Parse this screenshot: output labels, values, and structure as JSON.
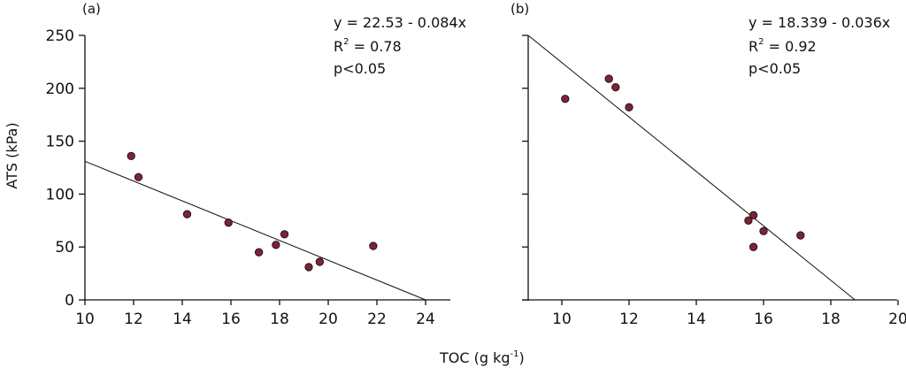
{
  "figure": {
    "xlabel_main": "TOC (g kg",
    "xlabel_sup": "-1",
    "xlabel_close": ")",
    "ylabel": "ATS (kPa)",
    "marker_color": "#7a2535",
    "line_color": "#111111"
  },
  "chart_data": [
    {
      "type": "scatter",
      "panel": "(a)",
      "title": "",
      "xlabel": "TOC (g kg-1)",
      "ylabel": "ATS (kPa)",
      "xlim": [
        10,
        25
      ],
      "ylim": [
        0,
        250
      ],
      "xticks": [
        10,
        12,
        14,
        16,
        18,
        20,
        22,
        24
      ],
      "yticks": [
        0,
        50,
        100,
        150,
        200,
        250
      ],
      "show_ytick_labels": true,
      "grid": false,
      "points": [
        {
          "x": 11.9,
          "y": 136
        },
        {
          "x": 12.2,
          "y": 116
        },
        {
          "x": 14.2,
          "y": 81
        },
        {
          "x": 15.9,
          "y": 73
        },
        {
          "x": 17.15,
          "y": 45
        },
        {
          "x": 17.85,
          "y": 52
        },
        {
          "x": 18.2,
          "y": 62
        },
        {
          "x": 19.2,
          "y": 31
        },
        {
          "x": 19.65,
          "y": 36
        },
        {
          "x": 21.85,
          "y": 51
        }
      ],
      "fit_line": {
        "x0": 10,
        "y0": 131,
        "x1": 24,
        "y1": 0
      },
      "annotation": {
        "equation": "y = 22.53 - 0.084x",
        "r2_prefix": "R",
        "r2_sup": "2",
        "r2_value": " = 0.78",
        "p": "p<0.05"
      }
    },
    {
      "type": "scatter",
      "panel": "(b)",
      "title": "",
      "xlabel": "TOC (g kg-1)",
      "ylabel": "",
      "xlim": [
        9,
        20
      ],
      "ylim": [
        0,
        250
      ],
      "xticks": [
        10,
        12,
        14,
        16,
        18,
        20
      ],
      "yticks": [
        0,
        50,
        100,
        150,
        200,
        250
      ],
      "show_ytick_labels": false,
      "grid": false,
      "points": [
        {
          "x": 10.1,
          "y": 190
        },
        {
          "x": 11.4,
          "y": 209
        },
        {
          "x": 11.6,
          "y": 201
        },
        {
          "x": 12.0,
          "y": 182
        },
        {
          "x": 15.55,
          "y": 75
        },
        {
          "x": 15.7,
          "y": 80
        },
        {
          "x": 15.7,
          "y": 50
        },
        {
          "x": 16.0,
          "y": 65
        },
        {
          "x": 17.1,
          "y": 61
        }
      ],
      "fit_line": {
        "x0": 9,
        "y0": 250,
        "x1": 18.72,
        "y1": 0
      },
      "annotation": {
        "equation": "y = 18.339 - 0.036x",
        "r2_prefix": "R",
        "r2_sup": "2",
        "r2_value": " = 0.92",
        "p": " p<0.05"
      }
    }
  ]
}
